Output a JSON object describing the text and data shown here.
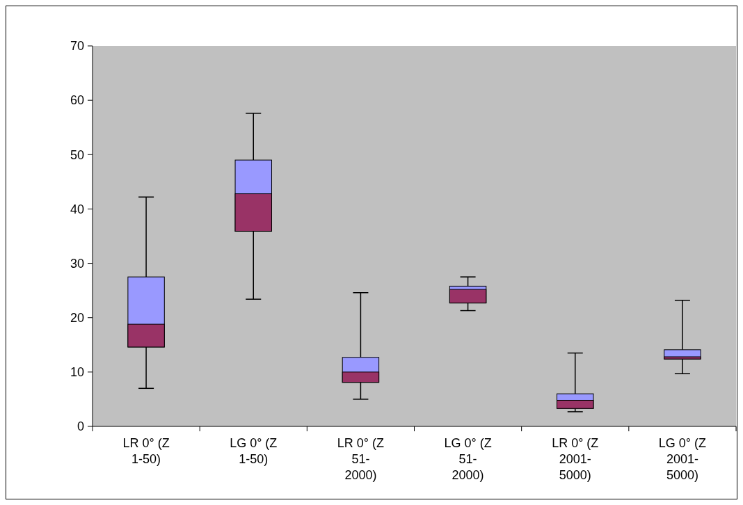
{
  "chart_data": {
    "type": "box",
    "categories": [
      "LR 0° (Z 1-50)",
      "LG 0° (Z 1-50)",
      "LR 0° (Z 51-2000)",
      "LG 0° (Z 51-2000)",
      "LR 0° (Z 2001-5000)",
      "LG 0° (Z 2001-5000)"
    ],
    "boxes": [
      {
        "low": 7,
        "q1": 14.6,
        "median": 18.8,
        "q3": 27.5,
        "high": 42.2
      },
      {
        "low": 23.4,
        "q1": 35.9,
        "median": 42.8,
        "q3": 49,
        "high": 57.6
      },
      {
        "low": 5,
        "q1": 8.1,
        "median": 10,
        "q3": 12.7,
        "high": 24.6
      },
      {
        "low": 21.3,
        "q1": 22.7,
        "median": 25.2,
        "q3": 25.8,
        "high": 27.5
      },
      {
        "low": 2.7,
        "q1": 3.3,
        "median": 4.8,
        "q3": 6,
        "high": 13.5
      },
      {
        "low": 9.7,
        "q1": 12.4,
        "median": 12.8,
        "q3": 14.1,
        "high": 23.2
      }
    ],
    "color": "#9999ff",
    "colors": [
      "#993366",
      "#993366",
      "#993366",
      "#993366",
      "#993366",
      "#993366"
    ],
    "ylim": [
      0,
      70
    ],
    "yticks": [
      0,
      10,
      20,
      30,
      40,
      50,
      60,
      70
    ]
  }
}
